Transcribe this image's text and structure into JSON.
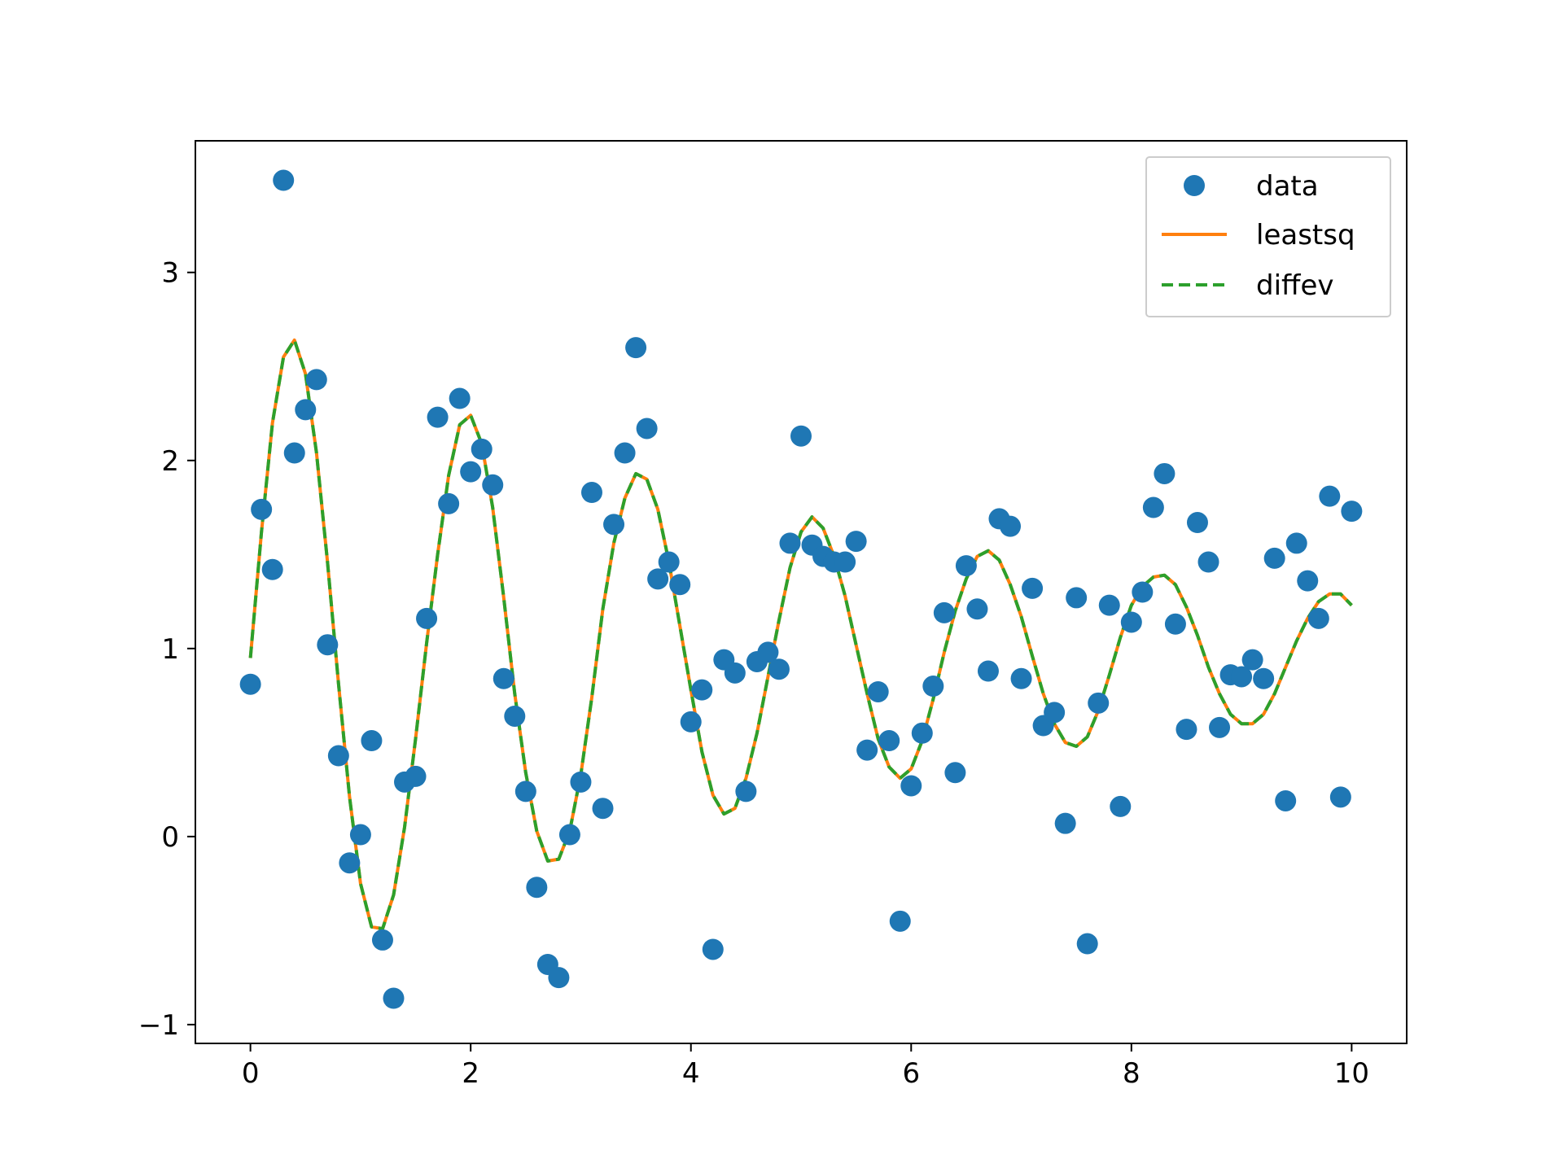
{
  "chart_data": {
    "type": "scatter",
    "title": "",
    "xlabel": "",
    "ylabel": "",
    "xlim": [
      -0.5,
      10.5
    ],
    "ylim": [
      -1.1,
      3.7
    ],
    "xticks": [
      0,
      2,
      4,
      6,
      8,
      10
    ],
    "yticks": [
      -1,
      0,
      1,
      2,
      3
    ],
    "xtick_labels": [
      "0",
      "2",
      "4",
      "6",
      "8",
      "10"
    ],
    "ytick_labels": [
      "−1",
      "0",
      "1",
      "2",
      "3"
    ],
    "grid": false,
    "legend_position": "top-right",
    "x": [
      0.0,
      0.1,
      0.2,
      0.3,
      0.4,
      0.5,
      0.6,
      0.7,
      0.8,
      0.9,
      1.0,
      1.1,
      1.2,
      1.3,
      1.4,
      1.5,
      1.6,
      1.7,
      1.8,
      1.9,
      2.0,
      2.1,
      2.2,
      2.3,
      2.4,
      2.5,
      2.6,
      2.7,
      2.8,
      2.9,
      3.0,
      3.1,
      3.2,
      3.3,
      3.4,
      3.5,
      3.6,
      3.7,
      3.8,
      3.9,
      4.0,
      4.1,
      4.2,
      4.3,
      4.4,
      4.5,
      4.6,
      4.7,
      4.8,
      4.9,
      5.0,
      5.1,
      5.2,
      5.3,
      5.4,
      5.5,
      5.6,
      5.7,
      5.8,
      5.9,
      6.0,
      6.1,
      6.2,
      6.3,
      6.4,
      6.5,
      6.6,
      6.7,
      6.8,
      6.9,
      7.0,
      7.1,
      7.2,
      7.3,
      7.4,
      7.5,
      7.6,
      7.7,
      7.8,
      7.9,
      8.0,
      8.1,
      8.2,
      8.3,
      8.4,
      8.5,
      8.6,
      8.7,
      8.8,
      8.9,
      9.0,
      9.1,
      9.2,
      9.3,
      9.4,
      9.5,
      9.6,
      9.7,
      9.8,
      9.9,
      10.0
    ],
    "series": [
      {
        "name": "data",
        "kind": "markers",
        "color": "#1f77b4",
        "values": [
          0.81,
          1.74,
          1.42,
          3.49,
          2.04,
          2.27,
          2.43,
          1.02,
          0.43,
          -0.14,
          0.01,
          0.51,
          -0.55,
          -0.86,
          0.29,
          0.32,
          1.16,
          2.23,
          1.77,
          2.33,
          1.94,
          2.06,
          1.87,
          0.84,
          0.64,
          0.24,
          -0.27,
          -0.68,
          -0.75,
          0.01,
          0.29,
          1.83,
          0.15,
          1.66,
          2.04,
          2.6,
          2.17,
          1.37,
          1.46,
          1.34,
          0.61,
          0.78,
          -0.6,
          0.94,
          0.87,
          0.24,
          0.93,
          0.98,
          0.89,
          1.56,
          2.13,
          1.55,
          1.49,
          1.46,
          1.46,
          1.57,
          0.46,
          0.77,
          0.51,
          -0.45,
          0.27,
          0.55,
          0.8,
          1.19,
          0.34,
          1.44,
          1.21,
          0.88,
          1.69,
          1.65,
          0.84,
          1.32,
          0.59,
          0.66,
          0.07,
          1.27,
          -0.57,
          0.71,
          1.23,
          0.16,
          1.14,
          1.3,
          1.75,
          1.93,
          1.13,
          0.57,
          1.67,
          1.46,
          0.58,
          0.86,
          0.85,
          0.94,
          0.84,
          1.48,
          0.19,
          1.56,
          1.36,
          1.16,
          1.81,
          0.21,
          1.73
        ]
      },
      {
        "name": "leastsq",
        "kind": "line",
        "color": "#ff7f0e",
        "values": [
          0.95,
          1.62,
          2.2,
          2.55,
          2.64,
          2.46,
          2.04,
          1.46,
          0.81,
          0.21,
          -0.25,
          -0.48,
          -0.49,
          -0.31,
          0.05,
          0.52,
          1.03,
          1.5,
          1.92,
          2.19,
          2.24,
          2.09,
          1.75,
          1.27,
          0.76,
          0.34,
          0.03,
          -0.13,
          -0.12,
          0.03,
          0.33,
          0.74,
          1.21,
          1.56,
          1.8,
          1.93,
          1.9,
          1.74,
          1.46,
          1.12,
          0.78,
          0.45,
          0.22,
          0.12,
          0.15,
          0.31,
          0.55,
          0.85,
          1.15,
          1.43,
          1.62,
          1.7,
          1.64,
          1.49,
          1.28,
          1.02,
          0.76,
          0.52,
          0.37,
          0.31,
          0.36,
          0.51,
          0.73,
          0.98,
          1.2,
          1.37,
          1.49,
          1.52,
          1.47,
          1.34,
          1.17,
          0.96,
          0.76,
          0.6,
          0.5,
          0.48,
          0.53,
          0.67,
          0.86,
          1.06,
          1.23,
          1.33,
          1.38,
          1.39,
          1.34,
          1.22,
          1.07,
          0.9,
          0.76,
          0.65,
          0.6,
          0.6,
          0.65,
          0.76,
          0.9,
          1.04,
          1.16,
          1.25,
          1.29,
          1.29,
          1.23
        ]
      },
      {
        "name": "diffev",
        "kind": "dashed-line",
        "color": "#2ca02c",
        "values": [
          0.95,
          1.62,
          2.2,
          2.55,
          2.64,
          2.46,
          2.04,
          1.46,
          0.81,
          0.21,
          -0.25,
          -0.48,
          -0.49,
          -0.31,
          0.05,
          0.52,
          1.03,
          1.5,
          1.92,
          2.19,
          2.24,
          2.09,
          1.75,
          1.27,
          0.76,
          0.34,
          0.03,
          -0.13,
          -0.12,
          0.03,
          0.33,
          0.74,
          1.21,
          1.56,
          1.8,
          1.93,
          1.9,
          1.74,
          1.46,
          1.12,
          0.78,
          0.45,
          0.22,
          0.12,
          0.15,
          0.31,
          0.55,
          0.85,
          1.15,
          1.43,
          1.62,
          1.7,
          1.64,
          1.49,
          1.28,
          1.02,
          0.76,
          0.52,
          0.37,
          0.31,
          0.36,
          0.51,
          0.73,
          0.98,
          1.2,
          1.37,
          1.49,
          1.52,
          1.47,
          1.34,
          1.17,
          0.96,
          0.76,
          0.6,
          0.5,
          0.48,
          0.53,
          0.67,
          0.86,
          1.06,
          1.23,
          1.33,
          1.38,
          1.39,
          1.34,
          1.22,
          1.07,
          0.9,
          0.76,
          0.65,
          0.6,
          0.6,
          0.65,
          0.76,
          0.9,
          1.04,
          1.16,
          1.25,
          1.29,
          1.29,
          1.23
        ]
      }
    ],
    "legend": [
      "data",
      "leastsq",
      "diffev"
    ]
  }
}
